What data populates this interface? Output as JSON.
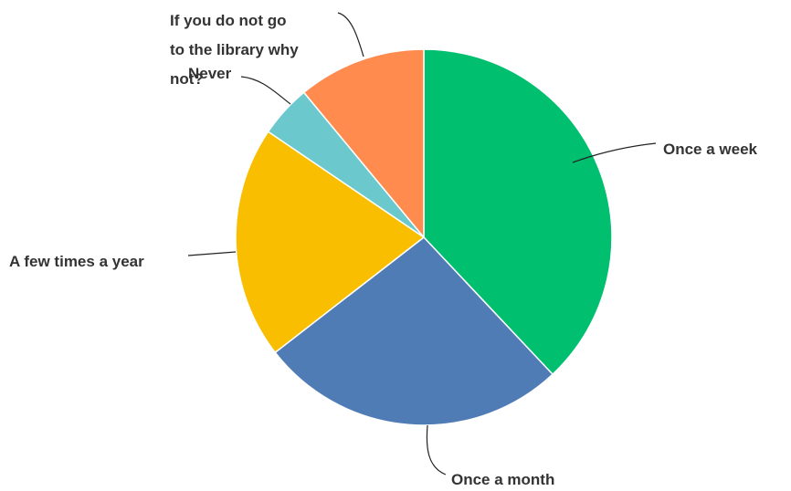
{
  "chart_data": {
    "type": "pie",
    "slices": [
      {
        "label": "Once a week",
        "value": 38.0,
        "color": "#00bf6f"
      },
      {
        "label": "Once a month",
        "value": 26.5,
        "color": "#507cb6"
      },
      {
        "label": "A few times a year",
        "value": 20.0,
        "color": "#f9be00"
      },
      {
        "label": "Never",
        "value": 4.5,
        "color": "#6bc8cd"
      },
      {
        "label": "If you do not go to the library why not?",
        "value": 11.0,
        "color": "#ff8b4f"
      }
    ],
    "start_angle_deg": 0,
    "direction": "clockwise",
    "legend": "none"
  }
}
